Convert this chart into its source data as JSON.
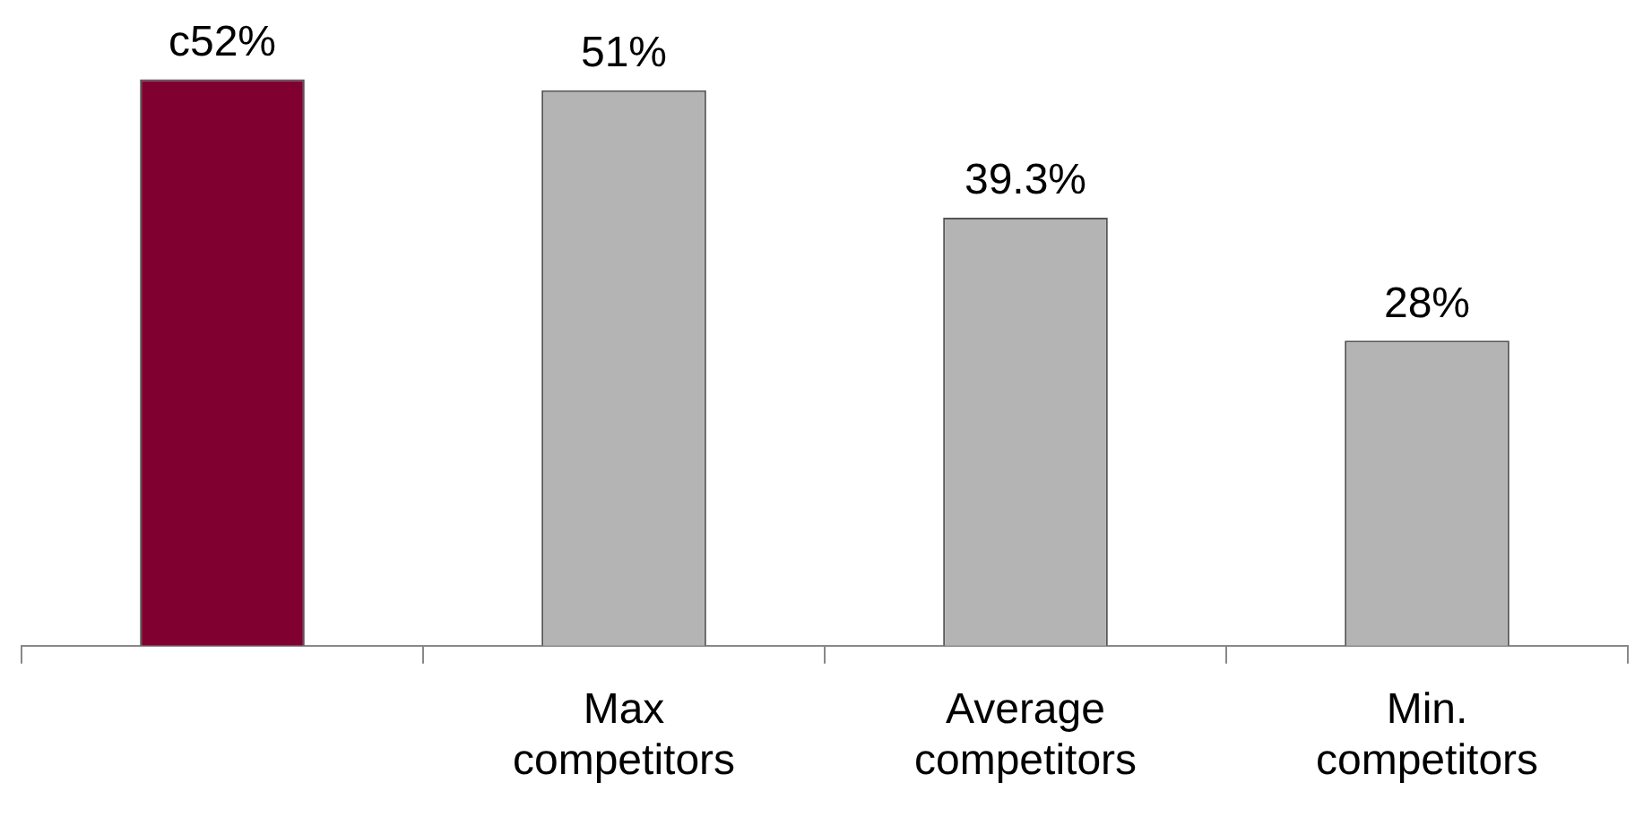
{
  "chart_data": {
    "type": "bar",
    "categories": [
      null,
      "Max competitors",
      "Average competitors",
      "Min. competitors"
    ],
    "values": [
      52,
      51,
      39.3,
      28
    ],
    "colors": [
      "#800030",
      "#b4b4b4",
      "#b4b4b4",
      "#b4b4b4"
    ],
    "value_labels": [
      "c52%",
      "51%",
      "39.3%",
      "28%"
    ]
  }
}
